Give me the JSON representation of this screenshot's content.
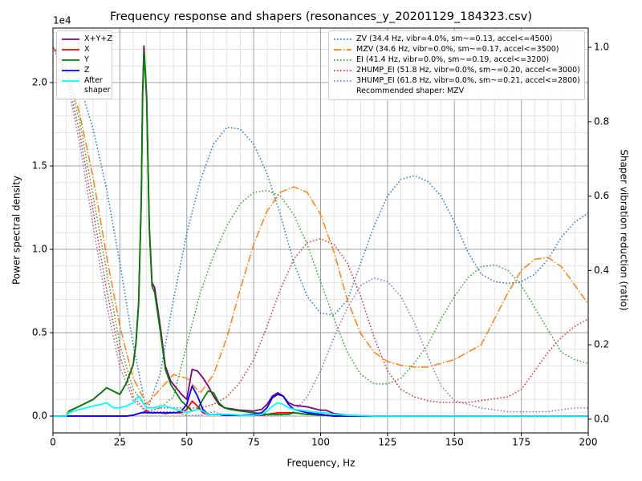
{
  "chart_data": {
    "type": "line",
    "title": "Frequency response and shapers (resonances_y_20201129_184323.csv)",
    "xlabel": "Frequency, Hz",
    "ylabel": "Power spectral density",
    "y2label": "Shaper vibration reduction (ratio)",
    "y_offset_text": "1e4",
    "xlim": [
      0,
      200
    ],
    "ylim": [
      -0.101,
      2.327
    ],
    "y2lim": [
      -0.037,
      1.052
    ],
    "xticks": [
      0,
      25,
      50,
      75,
      100,
      125,
      150,
      175,
      200
    ],
    "yticks": [
      {
        "value": 0,
        "label": "0.0"
      },
      {
        "value": 0.5,
        "label": "0.5"
      },
      {
        "value": 1,
        "label": "1.0"
      },
      {
        "value": 1.5,
        "label": "1.5"
      },
      {
        "value": 2,
        "label": "2.0"
      }
    ],
    "y2ticks": [
      {
        "value": 0,
        "label": "0.0"
      },
      {
        "value": 0.2,
        "label": "0.2"
      },
      {
        "value": 0.4,
        "label": "0.4"
      },
      {
        "value": 0.6,
        "label": "0.6"
      },
      {
        "value": 0.8,
        "label": "0.8"
      },
      {
        "value": 1,
        "label": "1.0"
      }
    ],
    "x_minor_ticks": [
      5,
      10,
      15,
      20,
      30,
      35,
      40,
      45,
      55,
      60,
      65,
      70,
      80,
      85,
      90,
      95,
      105,
      110,
      115,
      120,
      130,
      135,
      140,
      145,
      155,
      160,
      165,
      170,
      180,
      185,
      190,
      195
    ],
    "y_minor_ticks": [
      -0.1,
      0.1,
      0.2,
      0.3,
      0.4,
      0.6,
      0.7,
      0.8,
      0.9,
      1.1,
      1.2,
      1.3,
      1.4,
      1.6,
      1.7,
      1.8,
      1.9,
      2.1,
      2.2,
      2.3
    ],
    "grid": true,
    "minor_grid": true,
    "legend": "upper left",
    "legend2": "upper right",
    "annotation": "Recommended shaper: MZV",
    "series": [
      {
        "name": "X+Y+Z",
        "color": "#800080",
        "linestyle": "solid",
        "x": [
          0,
          5,
          6,
          10,
          15,
          18,
          20,
          22.5,
          25,
          27.5,
          30,
          31,
          32,
          33,
          33.5,
          34,
          35,
          36,
          37,
          38,
          40,
          42,
          44,
          46,
          48,
          50,
          52,
          54,
          56,
          58,
          60,
          62,
          64,
          66,
          70,
          75,
          78,
          80,
          82,
          84,
          86,
          88,
          90,
          95,
          100,
          102,
          105,
          110,
          120,
          150,
          200
        ],
        "values": [
          0,
          0,
          0.03,
          0.06,
          0.1,
          0.14,
          0.17,
          0.15,
          0.13,
          0.2,
          0.31,
          0.44,
          0.68,
          1.3,
          1.95,
          2.22,
          1.92,
          1.14,
          0.8,
          0.77,
          0.55,
          0.3,
          0.21,
          0.17,
          0.13,
          0.1,
          0.28,
          0.27,
          0.23,
          0.18,
          0.12,
          0.07,
          0.05,
          0.045,
          0.035,
          0.03,
          0.04,
          0.07,
          0.12,
          0.14,
          0.12,
          0.08,
          0.065,
          0.055,
          0.035,
          0.035,
          0.015,
          0.005,
          0,
          0,
          0
        ]
      },
      {
        "name": "X",
        "color": "#ff0000",
        "linestyle": "solid",
        "x": [
          0,
          5,
          6,
          10,
          15,
          18,
          20,
          22.5,
          25,
          27.5,
          30,
          31,
          32,
          33,
          33.5,
          34,
          35,
          36,
          37,
          38,
          40,
          42,
          44,
          46,
          48,
          50,
          52,
          54,
          56,
          58,
          60,
          62,
          64,
          66,
          70,
          75,
          78,
          80,
          82,
          84,
          86,
          88,
          90,
          95,
          100,
          102,
          105,
          110,
          120,
          150,
          200
        ],
        "values": [
          0,
          0,
          0,
          0,
          0,
          0,
          0,
          0,
          0,
          0,
          0.005,
          0.01,
          0.015,
          0.02,
          0.02,
          0.025,
          0.03,
          0.02,
          0.02,
          0.02,
          0.02,
          0.015,
          0.02,
          0.02,
          0.02,
          0.04,
          0.09,
          0.06,
          0.02,
          0.01,
          0.01,
          0.01,
          0.005,
          0.005,
          0.005,
          0.005,
          0.005,
          0.01,
          0.015,
          0.02,
          0.02,
          0.02,
          0.02,
          0.01,
          0.01,
          0.005,
          0,
          0,
          0,
          0,
          0
        ]
      },
      {
        "name": "Y",
        "color": "#008000",
        "linestyle": "solid",
        "x": [
          0,
          5,
          6,
          10,
          15,
          18,
          20,
          22.5,
          25,
          27.5,
          30,
          31,
          32,
          33,
          33.5,
          34,
          35,
          36,
          37,
          38,
          40,
          42,
          44,
          46,
          48,
          50,
          52,
          54,
          56,
          58,
          60,
          62,
          64,
          66,
          70,
          75,
          78,
          80,
          82,
          84,
          86,
          88,
          90,
          95,
          100,
          102,
          105,
          110,
          120,
          150,
          200
        ],
        "values": [
          0,
          0,
          0.03,
          0.06,
          0.1,
          0.14,
          0.17,
          0.15,
          0.13,
          0.2,
          0.31,
          0.43,
          0.67,
          1.29,
          1.92,
          2.19,
          1.9,
          1.12,
          0.78,
          0.74,
          0.52,
          0.28,
          0.19,
          0.14,
          0.09,
          0.06,
          0.03,
          0.04,
          0.1,
          0.15,
          0.14,
          0.08,
          0.05,
          0.04,
          0.03,
          0.02,
          0.015,
          0.01,
          0.01,
          0.01,
          0.01,
          0.01,
          0.02,
          0.01,
          0.005,
          0.005,
          0,
          0,
          0,
          0,
          0
        ]
      },
      {
        "name": "Z",
        "color": "#0000ff",
        "linestyle": "solid",
        "x": [
          0,
          5,
          6,
          10,
          15,
          18,
          20,
          22.5,
          25,
          27.5,
          30,
          31,
          32,
          33,
          33.5,
          34,
          35,
          36,
          37,
          38,
          40,
          42,
          44,
          46,
          48,
          50,
          52,
          54,
          56,
          58,
          60,
          62,
          64,
          66,
          70,
          75,
          78,
          80,
          82,
          84,
          86,
          88,
          90,
          95,
          100,
          102,
          105,
          110,
          120,
          150,
          200
        ],
        "values": [
          0,
          0,
          0,
          0,
          0,
          0,
          0,
          0,
          0,
          0,
          0.005,
          0.01,
          0.015,
          0.02,
          0.02,
          0.02,
          0.02,
          0.02,
          0.02,
          0.02,
          0.02,
          0.02,
          0.02,
          0.02,
          0.03,
          0.07,
          0.18,
          0.12,
          0.04,
          0.01,
          0.01,
          0.01,
          0.005,
          0.005,
          0.005,
          0.01,
          0.02,
          0.05,
          0.11,
          0.13,
          0.12,
          0.07,
          0.04,
          0.02,
          0.01,
          0.005,
          0,
          0,
          0,
          0,
          0
        ]
      },
      {
        "name": "After\nshaper",
        "color": "#00ffff",
        "linestyle": "solid",
        "x": [
          0,
          5,
          6,
          10,
          15,
          18,
          20,
          22.5,
          25,
          27.5,
          30,
          31,
          32,
          33,
          33.5,
          34,
          35,
          36,
          37,
          38,
          40,
          42,
          44,
          46,
          48,
          50,
          52,
          54,
          56,
          58,
          60,
          62,
          64,
          66,
          70,
          75,
          78,
          80,
          82,
          84,
          86,
          88,
          90,
          95,
          100,
          102,
          105,
          110,
          120,
          150,
          200
        ],
        "values": [
          0,
          0,
          0.02,
          0.04,
          0.06,
          0.07,
          0.08,
          0.05,
          0.05,
          0.06,
          0.08,
          0.1,
          0.12,
          0.1,
          0.08,
          0.07,
          0.05,
          0.05,
          0.05,
          0.05,
          0.06,
          0.06,
          0.05,
          0.04,
          0.03,
          0.02,
          0.03,
          0.04,
          0.03,
          0.01,
          0.01,
          0.01,
          0.01,
          0.01,
          0.005,
          0.005,
          0.01,
          0.03,
          0.06,
          0.08,
          0.07,
          0.05,
          0.04,
          0.03,
          0.02,
          0.02,
          0.01,
          0.005,
          0,
          0,
          0
        ]
      },
      {
        "name": "ZV (34.4 Hz, vibr=4.0%, sm~=0.13, accel<=4500)",
        "color": "#1f77b4",
        "linestyle": "dotted",
        "axis": "y2",
        "x": [
          0,
          5,
          10,
          15,
          20,
          25,
          30,
          35,
          40,
          45,
          50,
          55,
          60,
          65,
          70,
          75,
          80,
          85,
          90,
          95,
          100,
          105,
          110,
          115,
          120,
          125,
          130,
          135,
          140,
          145,
          150,
          155,
          160,
          165,
          170,
          175,
          180,
          185,
          190,
          195,
          200
        ],
        "values": [
          1.0,
          0.97,
          0.9,
          0.78,
          0.62,
          0.42,
          0.2,
          0.02,
          0.12,
          0.32,
          0.5,
          0.64,
          0.74,
          0.785,
          0.78,
          0.74,
          0.66,
          0.55,
          0.42,
          0.33,
          0.285,
          0.28,
          0.32,
          0.42,
          0.52,
          0.6,
          0.645,
          0.655,
          0.64,
          0.6,
          0.53,
          0.45,
          0.39,
          0.37,
          0.365,
          0.37,
          0.39,
          0.43,
          0.49,
          0.53,
          0.555
        ]
      },
      {
        "name": "MZV (34.6 Hz, vibr=0.0%, sm~=0.17, accel<=3500)",
        "color": "#ff7f0e",
        "linestyle": "dashdot",
        "axis": "y2",
        "x": [
          0,
          5,
          10,
          15,
          20,
          25,
          30,
          35,
          40,
          45,
          50,
          55,
          60,
          65,
          70,
          75,
          80,
          85,
          90,
          95,
          100,
          105,
          110,
          115,
          120,
          125,
          130,
          135,
          140,
          145,
          150,
          155,
          160,
          165,
          170,
          175,
          180,
          185,
          190,
          195,
          200
        ],
        "values": [
          1.0,
          0.95,
          0.82,
          0.65,
          0.44,
          0.25,
          0.11,
          0.04,
          0.08,
          0.12,
          0.11,
          0.07,
          0.12,
          0.22,
          0.35,
          0.47,
          0.56,
          0.61,
          0.625,
          0.61,
          0.55,
          0.45,
          0.32,
          0.23,
          0.18,
          0.155,
          0.145,
          0.14,
          0.14,
          0.15,
          0.16,
          0.18,
          0.2,
          0.27,
          0.34,
          0.4,
          0.43,
          0.435,
          0.41,
          0.36,
          0.31
        ]
      },
      {
        "name": "EI (41.4 Hz, vibr=0.0%, sm~=0.19, accel<=3200)",
        "color": "#2ca02c",
        "linestyle": "dotted",
        "axis": "y2",
        "x": [
          0,
          5,
          10,
          15,
          20,
          25,
          30,
          35,
          40,
          45,
          50,
          55,
          60,
          65,
          70,
          75,
          80,
          85,
          90,
          95,
          100,
          105,
          110,
          115,
          120,
          125,
          130,
          135,
          140,
          145,
          150,
          155,
          160,
          165,
          170,
          175,
          180,
          185,
          190,
          195,
          200
        ],
        "values": [
          1.0,
          0.94,
          0.8,
          0.6,
          0.4,
          0.2,
          0.08,
          0.03,
          0.03,
          0.06,
          0.2,
          0.34,
          0.44,
          0.52,
          0.58,
          0.61,
          0.615,
          0.6,
          0.55,
          0.47,
          0.37,
          0.27,
          0.18,
          0.12,
          0.095,
          0.095,
          0.11,
          0.15,
          0.2,
          0.27,
          0.33,
          0.38,
          0.41,
          0.415,
          0.4,
          0.36,
          0.3,
          0.24,
          0.18,
          0.16,
          0.15
        ]
      },
      {
        "name": "2HUMP_EI (51.8 Hz, vibr=0.0%, sm~=0.20, accel<=3000)",
        "color": "#d62728",
        "linestyle": "dotted",
        "axis": "y2",
        "x": [
          0,
          5,
          10,
          15,
          20,
          25,
          30,
          35,
          40,
          45,
          50,
          55,
          60,
          65,
          70,
          75,
          80,
          85,
          90,
          95,
          100,
          105,
          110,
          115,
          120,
          125,
          130,
          135,
          140,
          145,
          150,
          155,
          160,
          165,
          170,
          175,
          180,
          185,
          190,
          195,
          200
        ],
        "values": [
          1.0,
          0.93,
          0.77,
          0.56,
          0.35,
          0.17,
          0.06,
          0.02,
          0.03,
          0.03,
          0.03,
          0.03,
          0.04,
          0.06,
          0.1,
          0.16,
          0.25,
          0.35,
          0.43,
          0.475,
          0.485,
          0.47,
          0.42,
          0.33,
          0.22,
          0.13,
          0.08,
          0.06,
          0.05,
          0.045,
          0.045,
          0.045,
          0.05,
          0.055,
          0.06,
          0.08,
          0.13,
          0.18,
          0.22,
          0.25,
          0.27
        ]
      },
      {
        "name": "3HUMP_EI (61.8 Hz, vibr=0.0%, sm~=0.21, accel<=2800)",
        "color": "#9467bd",
        "linestyle": "dotted",
        "axis": "y2",
        "x": [
          0,
          5,
          10,
          15,
          20,
          25,
          30,
          35,
          40,
          45,
          50,
          55,
          60,
          65,
          70,
          75,
          80,
          85,
          90,
          95,
          100,
          105,
          110,
          115,
          120,
          125,
          130,
          135,
          140,
          145,
          150,
          155,
          160,
          165,
          170,
          175,
          180,
          185,
          190,
          195,
          200
        ],
        "values": [
          1.0,
          0.92,
          0.74,
          0.52,
          0.31,
          0.14,
          0.05,
          0.02,
          0.02,
          0.02,
          0.01,
          0.01,
          0.02,
          0.01,
          0.01,
          0.01,
          0.01,
          0.01,
          0.02,
          0.06,
          0.13,
          0.22,
          0.3,
          0.36,
          0.38,
          0.37,
          0.33,
          0.26,
          0.17,
          0.09,
          0.05,
          0.04,
          0.03,
          0.025,
          0.02,
          0.02,
          0.02,
          0.02,
          0.025,
          0.03,
          0.03
        ]
      }
    ]
  }
}
